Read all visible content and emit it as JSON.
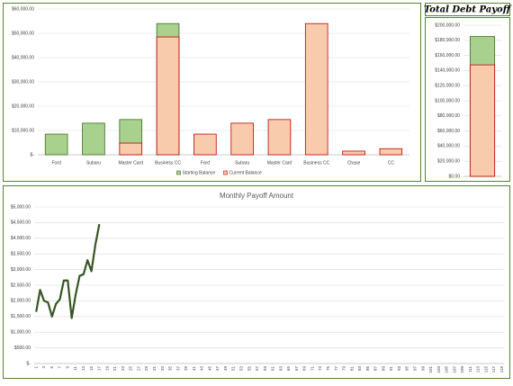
{
  "chart_data": [
    {
      "type": "bar",
      "overlap": true,
      "categories": [
        "Ford",
        "Subaru",
        "Master Card",
        "Business CC",
        "Ford",
        "Subaru",
        "Master Card",
        "Business CC",
        "Chase",
        "CC"
      ],
      "series": [
        {
          "name": "Starting Balance",
          "color": "#a9d18e",
          "edge": "#3d6b22",
          "values": [
            8500,
            13000,
            14500,
            54000,
            null,
            null,
            null,
            null,
            null,
            null
          ]
        },
        {
          "name": "Current Balance",
          "color": "#f8cbad",
          "edge": "#c00000",
          "values": [
            0,
            0,
            4800,
            48500,
            8500,
            13000,
            14500,
            54000,
            1500,
            2500
          ]
        }
      ],
      "ylim": [
        0,
        60000
      ],
      "yticks": [
        {
          "value": 0,
          "label": "$-"
        },
        {
          "value": 10000,
          "label": "$10,000.00"
        },
        {
          "value": 20000,
          "label": "$20,000.00"
        },
        {
          "value": 30000,
          "label": "$30,000.00"
        },
        {
          "value": 40000,
          "label": "$40,000.00"
        },
        {
          "value": 50000,
          "label": "$50,000.00"
        },
        {
          "value": 60000,
          "label": "$60,000.00"
        }
      ],
      "grid": true,
      "legend": "bottom"
    },
    {
      "type": "bar",
      "overlap": true,
      "title": "Total Debt Payoff",
      "categories": [
        null
      ],
      "series": [
        {
          "name": "Starting Balance",
          "color": "#a9d18e",
          "edge": "#3d6b22",
          "values": [
            185000
          ]
        },
        {
          "name": "Current Balance",
          "color": "#f8cbad",
          "edge": "#c00000",
          "values": [
            147500
          ]
        }
      ],
      "ylim": [
        0,
        200000
      ],
      "yticks": [
        {
          "value": 0,
          "label": "$0.00"
        },
        {
          "value": 20000,
          "label": "$20,000.00"
        },
        {
          "value": 40000,
          "label": "$40,000.00"
        },
        {
          "value": 60000,
          "label": "$60,000.00"
        },
        {
          "value": 80000,
          "label": "$80,000.00"
        },
        {
          "value": 100000,
          "label": "$100,000.00"
        },
        {
          "value": 120000,
          "label": "$120,000.00"
        },
        {
          "value": 140000,
          "label": "$140,000.00"
        },
        {
          "value": 160000,
          "label": "$160,000.00"
        },
        {
          "value": 180000,
          "label": "$180,000.00"
        },
        {
          "value": 200000,
          "label": "$200,000.00"
        }
      ],
      "grid": true
    },
    {
      "type": "line",
      "title": "Monthly Payoff Amount",
      "categories": [
        "1",
        null,
        "3",
        null,
        "5",
        null,
        "7",
        null,
        "9",
        null,
        "11",
        null,
        "13",
        null,
        "15",
        null,
        "17",
        null,
        "19",
        null,
        "21",
        null,
        "23",
        null,
        "25",
        null,
        "27",
        null,
        "29",
        null,
        "31",
        null,
        "33",
        null,
        "35",
        null,
        "37",
        null,
        "39",
        null,
        "41",
        null,
        "43",
        null,
        "45",
        null,
        "47",
        null,
        "49",
        null,
        "51",
        null,
        "53",
        null,
        "55",
        null,
        "57",
        null,
        "59",
        null,
        "61",
        null,
        "63",
        null,
        "65",
        null,
        "67",
        null,
        "69",
        null,
        "71",
        null,
        "73",
        null,
        "75",
        null,
        "77",
        null,
        "79",
        null,
        "81",
        null,
        "83",
        null,
        "85",
        null,
        "87",
        null,
        "89",
        null,
        "91",
        null,
        "93",
        null,
        "95",
        null,
        "97",
        null,
        "99",
        null,
        "101",
        null,
        "103",
        null,
        "105",
        null,
        "107",
        null,
        "109",
        null,
        "111",
        null,
        "113",
        null,
        "115",
        null,
        "117",
        null,
        "119"
      ],
      "series": [
        {
          "name": "Monthly Payoff Amount",
          "color": "#375623",
          "values": [
            1650,
            2350,
            2000,
            1950,
            1500,
            1900,
            2050,
            2650,
            2650,
            1450,
            2200,
            2800,
            2850,
            3300,
            2950,
            3800,
            4450,
            null,
            null,
            null,
            null,
            null,
            null,
            null,
            null,
            null,
            null,
            null,
            null,
            null,
            null,
            null,
            null,
            null,
            null,
            null,
            null,
            null,
            null,
            null,
            null,
            null,
            null,
            null,
            null,
            null,
            null,
            null,
            null,
            null,
            null,
            null,
            null,
            null,
            null,
            null,
            null,
            null,
            null,
            null,
            null,
            null,
            null,
            null,
            null,
            null,
            null,
            null,
            null,
            null,
            null,
            null,
            null,
            null,
            null,
            null,
            null,
            null,
            null,
            null,
            null,
            null,
            null,
            null,
            null,
            null,
            null,
            null,
            null,
            null,
            null,
            null,
            null,
            null,
            null,
            null,
            null,
            null,
            null,
            null,
            null,
            null,
            null,
            null,
            null,
            null,
            null,
            null,
            null,
            null,
            null,
            null,
            null,
            null,
            null,
            null,
            null,
            null,
            null
          ]
        }
      ],
      "ylim": [
        0,
        5000
      ],
      "yticks": [
        {
          "value": 0,
          "label": "$-"
        },
        {
          "value": 500,
          "label": "$500.00"
        },
        {
          "value": 1000,
          "label": "$1,000.00"
        },
        {
          "value": 1500,
          "label": "$1,500.00"
        },
        {
          "value": 2000,
          "label": "$2,000.00"
        },
        {
          "value": 2500,
          "label": "$2,500.00"
        },
        {
          "value": 3000,
          "label": "$3,000.00"
        },
        {
          "value": 3500,
          "label": "$3,500.00"
        },
        {
          "value": 4000,
          "label": "$4,000.00"
        },
        {
          "value": 4500,
          "label": "$4,500.00"
        },
        {
          "value": 5000,
          "label": "$5,000.00"
        }
      ],
      "grid": true
    }
  ]
}
